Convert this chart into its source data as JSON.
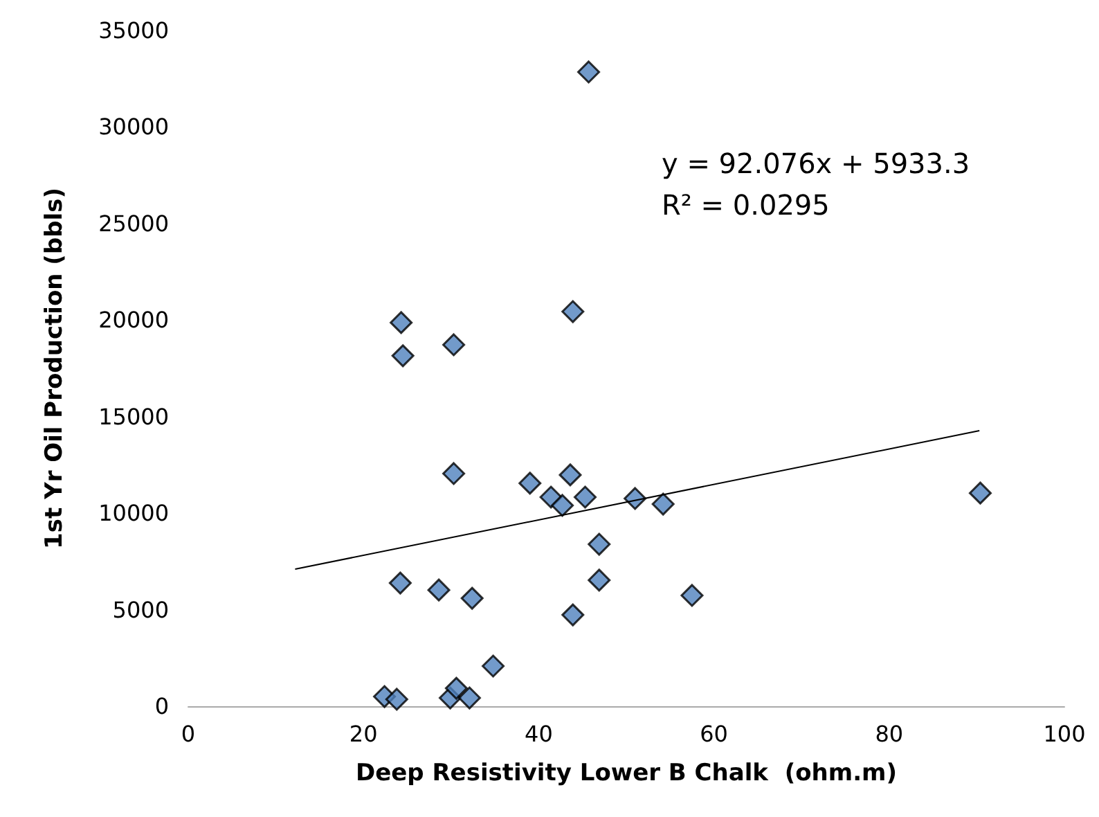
{
  "chart_data": {
    "type": "scatter",
    "xlabel": "Deep Resistivity Lower B Chalk  (ohm.m)",
    "ylabel": "1st Yr Oil Production (bbls)",
    "annotations": [
      "y = 92.076x + 5933.3",
      "R² = 0.0295"
    ],
    "xlim": [
      0,
      100
    ],
    "xticks": [
      0,
      20,
      40,
      60,
      80,
      100
    ],
    "ylim": [
      0,
      35000
    ],
    "yticks": [
      0,
      5000,
      10000,
      15000,
      20000,
      25000,
      30000,
      35000
    ],
    "grid": false,
    "marker": "diamond",
    "series": [
      {
        "color": "#4f81bd",
        "x": [
          45.7,
          24.3,
          24.5,
          30.3,
          30.3,
          39.0,
          43.6,
          41.4,
          42.7,
          45.3,
          51.0,
          54.2,
          46.9,
          46.9,
          43.9,
          24.2,
          28.6,
          32.4,
          34.8,
          22.4,
          23.8,
          29.9,
          30.6,
          32.1,
          43.9,
          90.4,
          57.5
        ],
        "values": [
          32850,
          19870,
          18150,
          18720,
          12050,
          11550,
          11980,
          10830,
          10400,
          10830,
          10760,
          10470,
          8390,
          6530,
          4730,
          6380,
          6020,
          5590,
          2080,
          500,
          360,
          430,
          930,
          430,
          20440,
          11040,
          5740
        ]
      },
      {
        "type": "line",
        "color": "#000000",
        "marker": "none",
        "x": [
          12.2,
          90.3
        ],
        "values": [
          7100,
          14270
        ]
      }
    ]
  }
}
